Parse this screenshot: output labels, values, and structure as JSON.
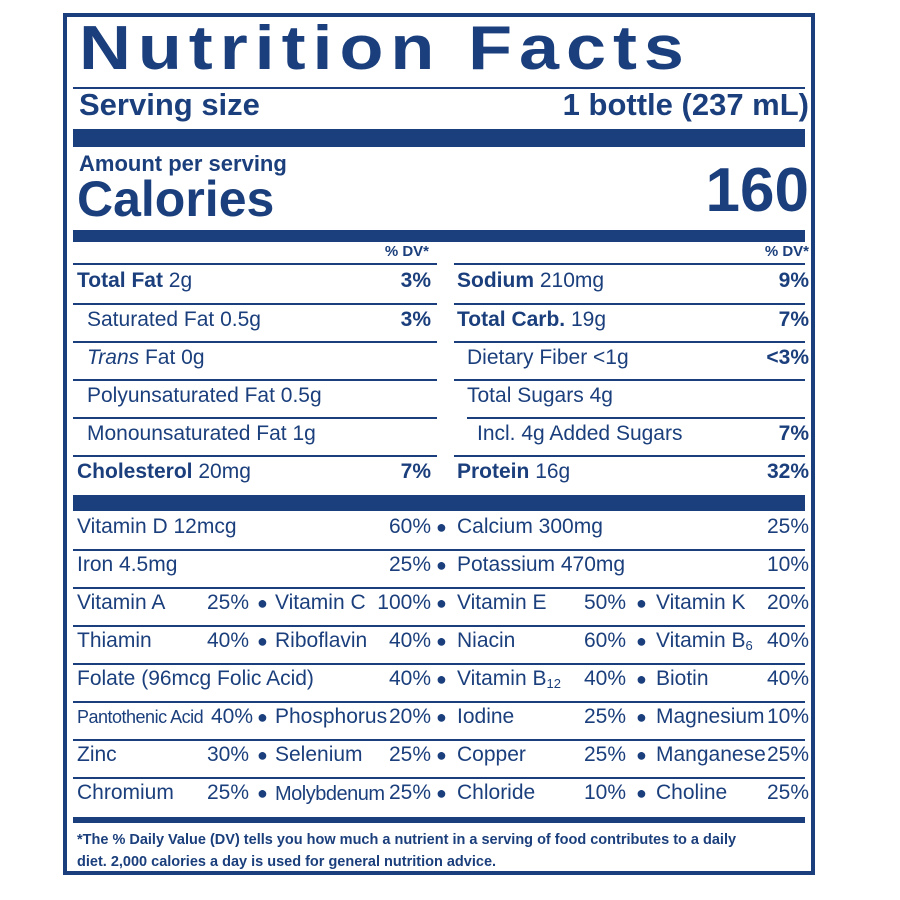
{
  "title": "Nutrition Facts",
  "serving": {
    "label": "Serving size",
    "value": "1 bottle (237 mL)"
  },
  "amount_label": "Amount per serving",
  "calories": {
    "label": "Calories",
    "value": "160"
  },
  "dv_header": "% DV*",
  "left_col": {
    "total_fat": {
      "name": "Total Fat",
      "amount": "2g",
      "dv": "3%"
    },
    "sat_fat": {
      "name": "Saturated Fat 0.5g",
      "dv": "3%"
    },
    "trans_fat": {
      "name_italic": "Trans",
      "name": "Fat 0g"
    },
    "poly_fat": {
      "name": "Polyunsaturated Fat 0.5g"
    },
    "mono_fat": {
      "name": "Monounsaturated Fat 1g"
    },
    "cholesterol": {
      "name": "Cholesterol",
      "amount": "20mg",
      "dv": "7%"
    }
  },
  "right_col": {
    "sodium": {
      "name": "Sodium",
      "amount": "210mg",
      "dv": "9%"
    },
    "total_carb": {
      "name": "Total Carb.",
      "amount": "19g",
      "dv": "7%"
    },
    "fiber": {
      "name": "Dietary Fiber <1g",
      "dv": "<3%"
    },
    "sugars": {
      "name": "Total Sugars 4g"
    },
    "added_sugars": {
      "name": "Incl. 4g Added Sugars",
      "dv": "7%"
    },
    "protein": {
      "name": "Protein",
      "amount": "16g",
      "dv": "32%"
    }
  },
  "vitamins": {
    "row1": {
      "a_name": "Vitamin D 12mcg",
      "a_dv": "60%",
      "b_name": "Calcium 300mg",
      "b_dv": "25%"
    },
    "row2": {
      "a_name": "Iron 4.5mg",
      "a_dv": "25%",
      "b_name": "Potassium 470mg",
      "b_dv": "10%"
    },
    "row3": [
      [
        "Vitamin A",
        "25%"
      ],
      [
        "Vitamin C",
        "100%"
      ],
      [
        "Vitamin E",
        "50%"
      ],
      [
        "Vitamin K",
        "20%"
      ]
    ],
    "row4": [
      [
        "Thiamin",
        "40%"
      ],
      [
        "Riboflavin",
        "40%"
      ],
      [
        "Niacin",
        "60%"
      ],
      [
        "Vitamin B",
        "40%"
      ]
    ],
    "row4_sub": "6",
    "row5": {
      "a_name": "Folate (96mcg Folic Acid)",
      "a_dv": "40%",
      "c_name": "Vitamin B",
      "c_sub": "12",
      "c_dv": "40%",
      "d_name": "Biotin",
      "d_dv": "40%"
    },
    "row6": [
      [
        "Pantothenic Acid",
        "40%"
      ],
      [
        "Phosphorus",
        "20%"
      ],
      [
        "Iodine",
        "25%"
      ],
      [
        "Magnesium",
        "10%"
      ]
    ],
    "row7": [
      [
        "Zinc",
        "30%"
      ],
      [
        "Selenium",
        "25%"
      ],
      [
        "Copper",
        "25%"
      ],
      [
        "Manganese",
        "25%"
      ]
    ],
    "row8": [
      [
        "Chromium",
        "25%"
      ],
      [
        "Molybdenum",
        "25%"
      ],
      [
        "Chloride",
        "10%"
      ],
      [
        "Choline",
        "25%"
      ]
    ]
  },
  "footnote": {
    "line1": "*The % Daily Value (DV) tells you how much a nutrient in a serving of food contributes to a daily",
    "line2": "diet. 2,000 calories a day is used for general nutrition advice."
  }
}
